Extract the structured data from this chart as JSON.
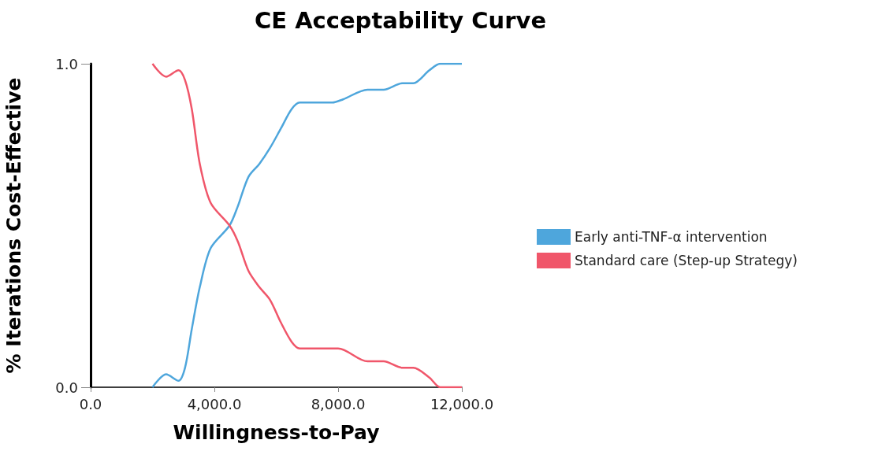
{
  "chart_data": {
    "type": "line",
    "title": "CE Acceptability Curve",
    "xlabel": "Willingness-to-Pay",
    "ylabel": "% Iterations Cost-Effective",
    "xlim": [
      0,
      12000
    ],
    "xticks": [
      {
        "value": 0,
        "label": "0.0"
      },
      {
        "value": 4000,
        "label": "4,000.0"
      },
      {
        "value": 8000,
        "label": "8,000.0"
      },
      {
        "value": 12000,
        "label": "12,000.0"
      }
    ],
    "ylim": [
      0,
      1
    ],
    "yticks": [
      {
        "value": 0,
        "label": "0.0"
      },
      {
        "value": 1,
        "label": "1.0"
      }
    ],
    "grid": false,
    "legend": "right",
    "marker": "none",
    "line_style": "solid",
    "series": [
      {
        "name": "Early anti-TNF-α intervention",
        "color": "#4ea6dc",
        "x": [
          2000,
          2440,
          2840,
          3050,
          3270,
          3530,
          3880,
          4490,
          4760,
          5100,
          5450,
          5800,
          6150,
          6500,
          6760,
          7810,
          8160,
          8950,
          9470,
          10080,
          10430,
          10950,
          11300,
          12000
        ],
        "values": [
          0,
          0.04,
          0.02,
          0.06,
          0.18,
          0.31,
          0.43,
          0.5,
          0.56,
          0.65,
          0.69,
          0.74,
          0.8,
          0.86,
          0.88,
          0.88,
          0.89,
          0.92,
          0.92,
          0.94,
          0.94,
          0.98,
          1,
          1
        ]
      },
      {
        "name": "Standard care (Step-up Strategy)",
        "color": "#f0566a",
        "x": [
          2000,
          2440,
          2840,
          3050,
          3270,
          3530,
          3880,
          4490,
          4760,
          5100,
          5450,
          5800,
          6150,
          6500,
          6760,
          8000,
          8950,
          9470,
          10080,
          10430,
          10950,
          11300,
          12000
        ],
        "values": [
          1,
          0.96,
          0.98,
          0.95,
          0.86,
          0.69,
          0.57,
          0.5,
          0.45,
          0.36,
          0.31,
          0.27,
          0.2,
          0.14,
          0.12,
          0.12,
          0.08,
          0.08,
          0.06,
          0.06,
          0.03,
          0,
          0
        ]
      }
    ]
  }
}
